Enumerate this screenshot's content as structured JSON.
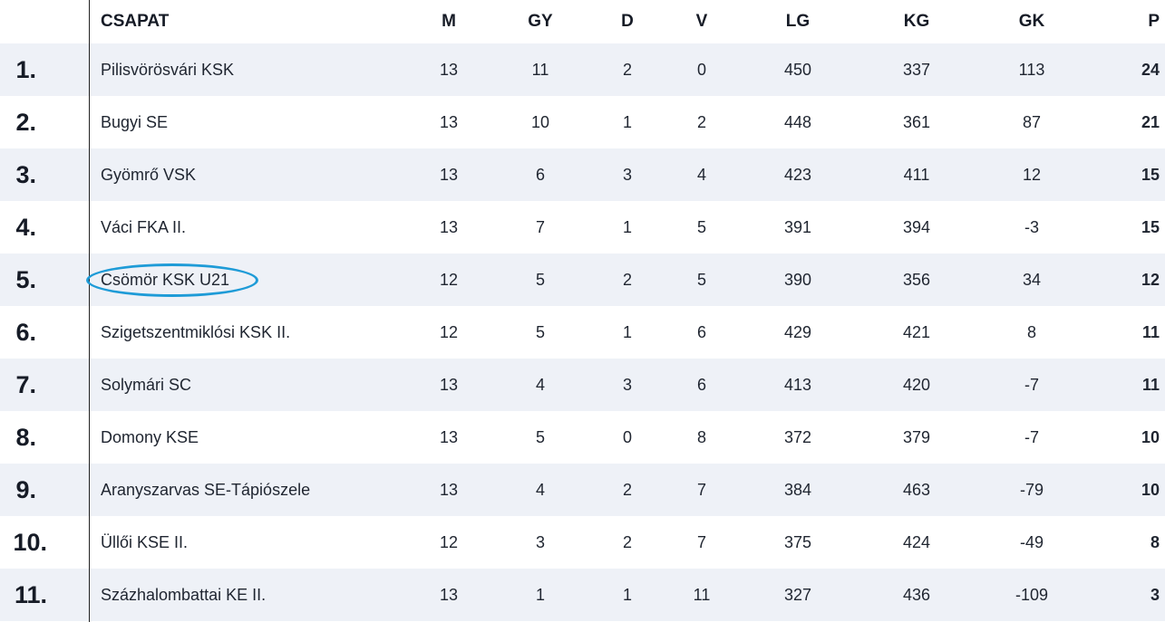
{
  "table": {
    "columns": {
      "rank": "",
      "team": "CSAPAT",
      "m": "M",
      "gy": "GY",
      "d": "D",
      "v": "V",
      "lg": "LG",
      "kg": "KG",
      "gk": "GK",
      "p": "P"
    },
    "rows": [
      {
        "rank": "1.",
        "team": "Pilisvörösvári KSK",
        "m": "13",
        "gy": "11",
        "d": "2",
        "v": "0",
        "lg": "450",
        "kg": "337",
        "gk": "113",
        "p": "24"
      },
      {
        "rank": "2.",
        "team": "Bugyi SE",
        "m": "13",
        "gy": "10",
        "d": "1",
        "v": "2",
        "lg": "448",
        "kg": "361",
        "gk": "87",
        "p": "21"
      },
      {
        "rank": "3.",
        "team": "Gyömrő VSK",
        "m": "13",
        "gy": "6",
        "d": "3",
        "v": "4",
        "lg": "423",
        "kg": "411",
        "gk": "12",
        "p": "15"
      },
      {
        "rank": "4.",
        "team": "Váci FKA II.",
        "m": "13",
        "gy": "7",
        "d": "1",
        "v": "5",
        "lg": "391",
        "kg": "394",
        "gk": "-3",
        "p": "15"
      },
      {
        "rank": "5.",
        "team": "Csömör KSK U21",
        "m": "12",
        "gy": "5",
        "d": "2",
        "v": "5",
        "lg": "390",
        "kg": "356",
        "gk": "34",
        "p": "12"
      },
      {
        "rank": "6.",
        "team": "Szigetszentmiklósi KSK II.",
        "m": "12",
        "gy": "5",
        "d": "1",
        "v": "6",
        "lg": "429",
        "kg": "421",
        "gk": "8",
        "p": "11"
      },
      {
        "rank": "7.",
        "team": "Solymári SC",
        "m": "13",
        "gy": "4",
        "d": "3",
        "v": "6",
        "lg": "413",
        "kg": "420",
        "gk": "-7",
        "p": "11"
      },
      {
        "rank": "8.",
        "team": "Domony KSE",
        "m": "13",
        "gy": "5",
        "d": "0",
        "v": "8",
        "lg": "372",
        "kg": "379",
        "gk": "-7",
        "p": "10"
      },
      {
        "rank": "9.",
        "team": "Aranyszarvas SE-Tápiószele",
        "m": "13",
        "gy": "4",
        "d": "2",
        "v": "7",
        "lg": "384",
        "kg": "463",
        "gk": "-79",
        "p": "10"
      },
      {
        "rank": "10.",
        "team": "Üllői KSE II.",
        "m": "12",
        "gy": "3",
        "d": "2",
        "v": "7",
        "lg": "375",
        "kg": "424",
        "gk": "-49",
        "p": "8"
      },
      {
        "rank": "11.",
        "team": "Százhalombattai KE II.",
        "m": "13",
        "gy": "1",
        "d": "1",
        "v": "11",
        "lg": "327",
        "kg": "436",
        "gk": "-109",
        "p": "3"
      }
    ],
    "highlighted_team": "Csömör KSK U21",
    "colors": {
      "row_shade": "#eef1f7",
      "highlight_outline": "#1e9bd7",
      "text": "#1f2530"
    }
  }
}
